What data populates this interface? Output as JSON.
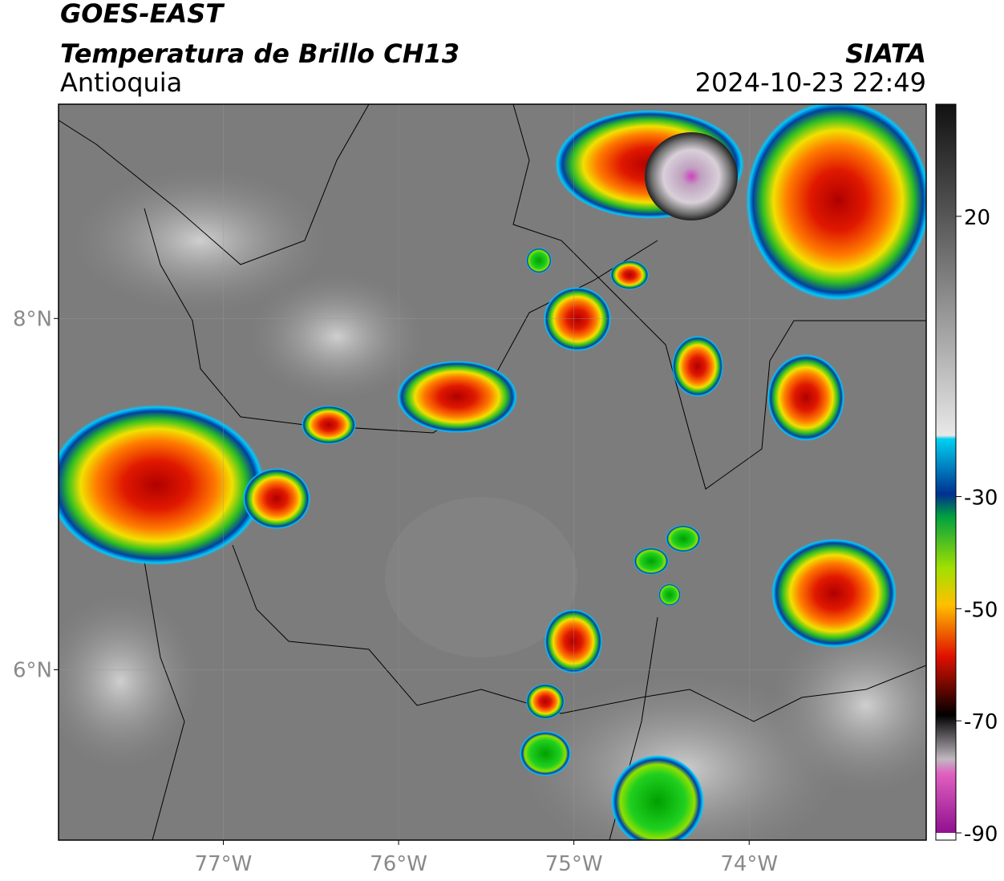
{
  "header": {
    "title": "GOES-EAST",
    "product": "Temperatura de Brillo CH13",
    "region": "Antioquia",
    "source": "SIATA",
    "datetime": "2024-10-23 22:49"
  },
  "map": {
    "xlim": [
      -77.94,
      -72.99
    ],
    "ylim": [
      5.03,
      9.22
    ],
    "xticks": [
      {
        "value": -77,
        "label": "77°W"
      },
      {
        "value": -76,
        "label": "76°W"
      },
      {
        "value": -75,
        "label": "75°W"
      },
      {
        "value": -74,
        "label": "74°W"
      }
    ],
    "yticks": [
      {
        "value": 6,
        "label": "6°N"
      },
      {
        "value": 8,
        "label": "8°N"
      }
    ]
  },
  "colorbar": {
    "lim": [
      -90,
      40
    ],
    "ticks": [
      20,
      -30,
      -50,
      -70,
      -90
    ]
  }
}
